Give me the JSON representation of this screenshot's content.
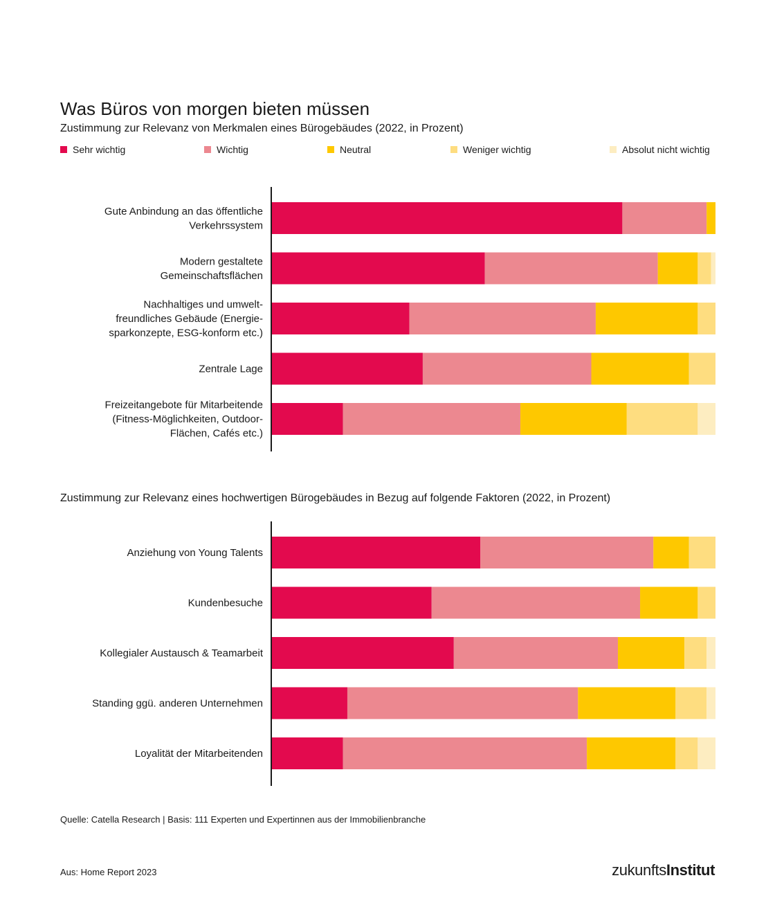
{
  "title": "Was Büros von morgen bieten müssen",
  "legend": [
    {
      "label": "Sehr wichtig",
      "color": "#e30a4e"
    },
    {
      "label": "Wichtig",
      "color": "#ec8890"
    },
    {
      "label": "Neutral",
      "color": "#fec800"
    },
    {
      "label": "Weniger wichtig",
      "color": "#fedd80"
    },
    {
      "label": "Absolut nicht wichtig",
      "color": "#fdedc1"
    }
  ],
  "chart_data": [
    {
      "type": "bar",
      "orientation": "horizontal",
      "stacked": true,
      "title": "Zustimmung zur Relevanz von Merkmalen eines Bürogebäudes (2022, in Prozent)",
      "xlim": [
        0,
        100
      ],
      "categories": [
        [
          "Gute Anbindung an das öffentliche",
          "Verkehrssystem"
        ],
        [
          "Modern gestaltete",
          "Gemeinschaftsflächen"
        ],
        [
          "Nachhaltiges und umwelt-",
          "freundliches Gebäude (Energie-",
          "sparkonzepte, ESG-konform etc.)"
        ],
        [
          "Zentrale Lage"
        ],
        [
          "Freizeitangebote für Mitarbeitende",
          "(Fitness-Möglichkeiten, Outdoor-",
          "Flächen, Cafés etc.)"
        ]
      ],
      "series": [
        {
          "name": "Sehr wichtig",
          "values": [
            79,
            48,
            31,
            34,
            16
          ]
        },
        {
          "name": "Wichtig",
          "values": [
            19,
            39,
            42,
            38,
            40
          ]
        },
        {
          "name": "Neutral",
          "values": [
            2,
            9,
            23,
            22,
            24
          ]
        },
        {
          "name": "Weniger wichtig",
          "values": [
            0,
            3,
            4,
            6,
            16
          ]
        },
        {
          "name": "Absolut nicht wichtig",
          "values": [
            0,
            1,
            0,
            0,
            4
          ]
        }
      ]
    },
    {
      "type": "bar",
      "orientation": "horizontal",
      "stacked": true,
      "title": "Zustimmung zur Relevanz eines hochwertigen Bürogebäudes in Bezug auf folgende Faktoren (2022, in Prozent)",
      "xlim": [
        0,
        100
      ],
      "categories": [
        [
          "Anziehung von Young Talents"
        ],
        [
          "Kundenbesuche"
        ],
        [
          "Kollegialer Austausch & Teamarbeit"
        ],
        [
          "Standing ggü. anderen Unternehmen"
        ],
        [
          "Loyalität der Mitarbeitenden"
        ]
      ],
      "series": [
        {
          "name": "Sehr wichtig",
          "values": [
            47,
            36,
            41,
            17,
            16
          ]
        },
        {
          "name": "Wichtig",
          "values": [
            39,
            47,
            37,
            52,
            55
          ]
        },
        {
          "name": "Neutral",
          "values": [
            8,
            13,
            15,
            22,
            20
          ]
        },
        {
          "name": "Weniger wichtig",
          "values": [
            6,
            4,
            5,
            7,
            5
          ]
        },
        {
          "name": "Absolut nicht wichtig",
          "values": [
            0,
            0,
            2,
            2,
            4
          ]
        }
      ]
    }
  ],
  "source": "Quelle: Catella Research | Basis: 111 Experten und Expertinnen aus der Immobilienbranche",
  "footer": "Aus: Home Report 2023",
  "brand": {
    "regular": "zukunfts",
    "bold": "Institut"
  }
}
